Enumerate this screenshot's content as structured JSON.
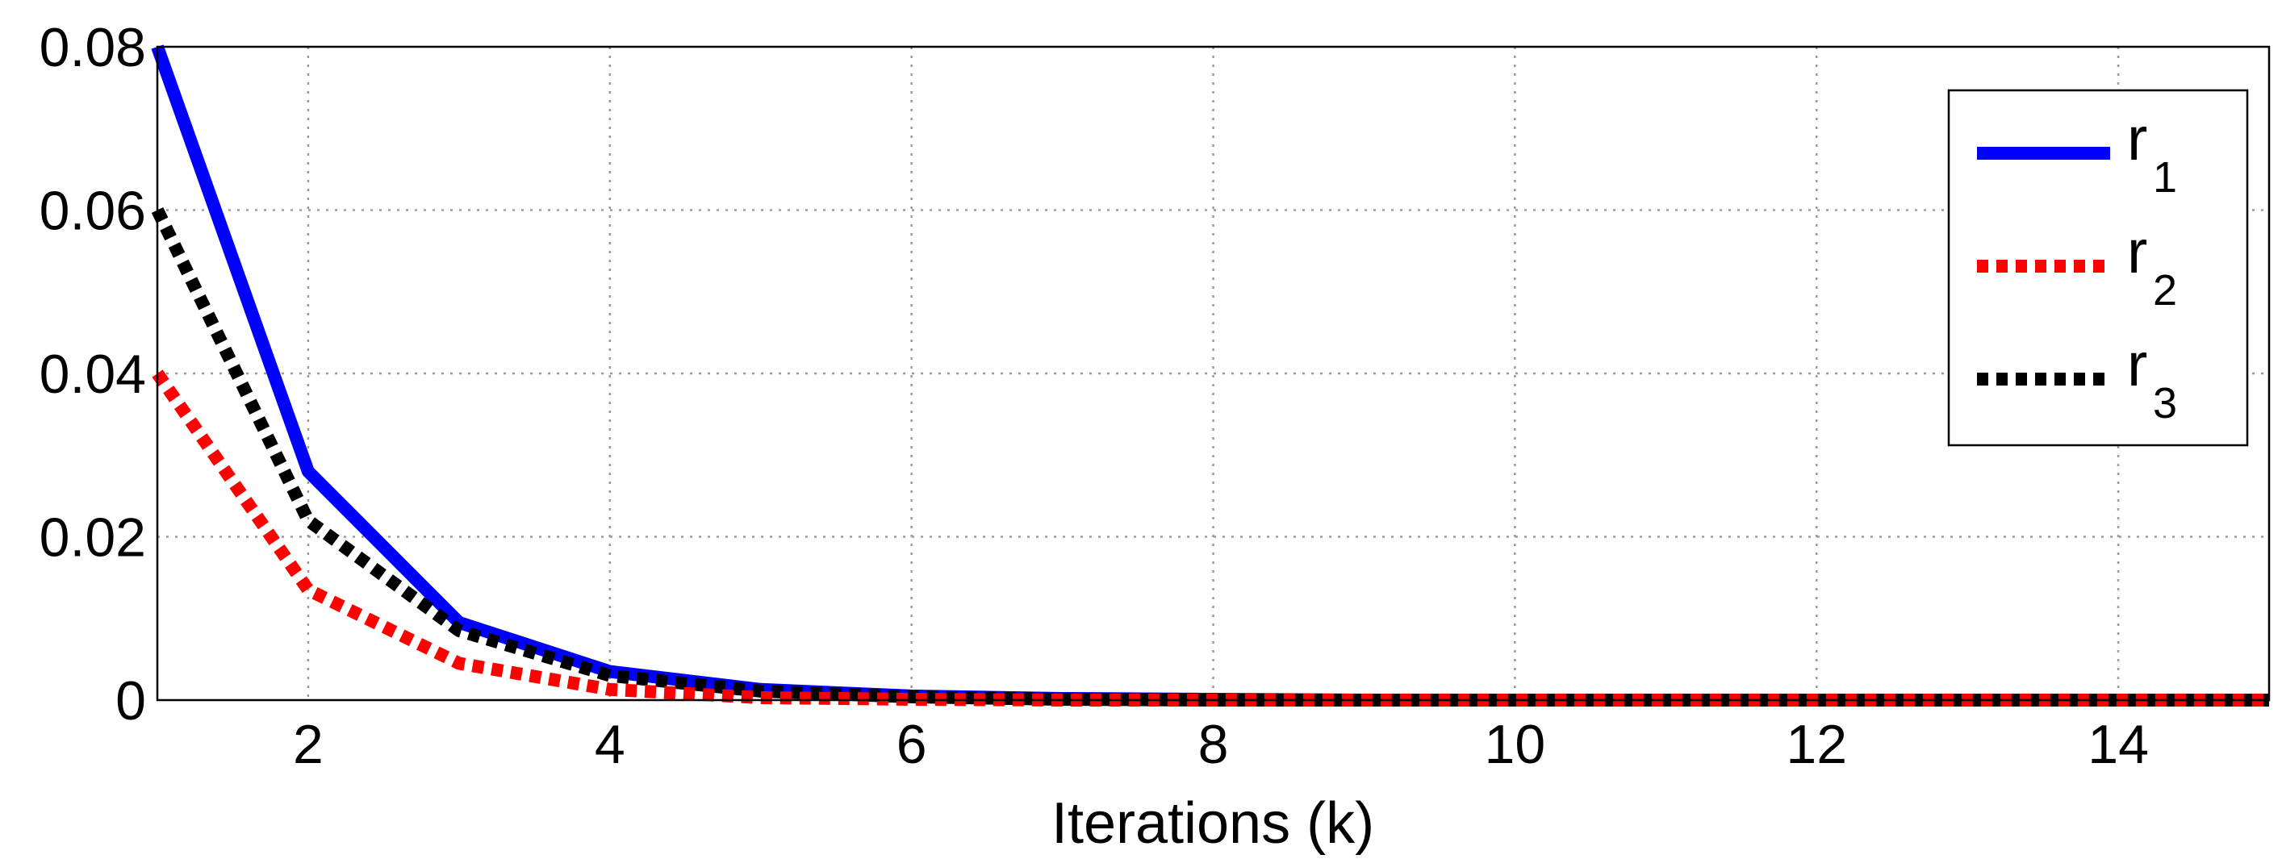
{
  "chart_data": {
    "type": "line",
    "xlabel": "Iterations (k)",
    "ylabel": "",
    "xlim": [
      1,
      15
    ],
    "ylim": [
      0,
      0.08
    ],
    "xticks": [
      2,
      4,
      6,
      8,
      10,
      12,
      14
    ],
    "yticks": [
      0,
      0.02,
      0.04,
      0.06,
      0.08
    ],
    "ytick_labels": [
      "0",
      "0.02",
      "0.04",
      "0.06",
      "0.08"
    ],
    "grid": true,
    "legend_position": "top-right",
    "x": [
      1,
      2,
      3,
      4,
      5,
      6,
      7,
      8,
      9,
      10,
      11,
      12,
      13,
      14,
      15
    ],
    "series": [
      {
        "name": "r",
        "subscript": "1",
        "color": "#0000ff",
        "style": "solid",
        "values": [
          0.08,
          0.028,
          0.0095,
          0.0035,
          0.0013,
          0.0005,
          0.0002,
          0.0001,
          0.0,
          0.0,
          0.0,
          0.0,
          0.0,
          0.0,
          0.0
        ]
      },
      {
        "name": "r",
        "subscript": "2",
        "color": "#ff0000",
        "style": "dotted",
        "values": [
          0.04,
          0.0135,
          0.0045,
          0.0013,
          0.0003,
          0.0001,
          0.0,
          0.0,
          0.0,
          0.0,
          0.0,
          0.0,
          0.0,
          0.0,
          0.0
        ]
      },
      {
        "name": "r",
        "subscript": "3",
        "color": "#000000",
        "style": "dotted",
        "values": [
          0.06,
          0.022,
          0.0085,
          0.003,
          0.0011,
          0.0004,
          0.0001,
          0.0,
          0.0,
          0.0,
          0.0,
          0.0,
          0.0,
          0.0,
          0.0
        ]
      }
    ]
  }
}
